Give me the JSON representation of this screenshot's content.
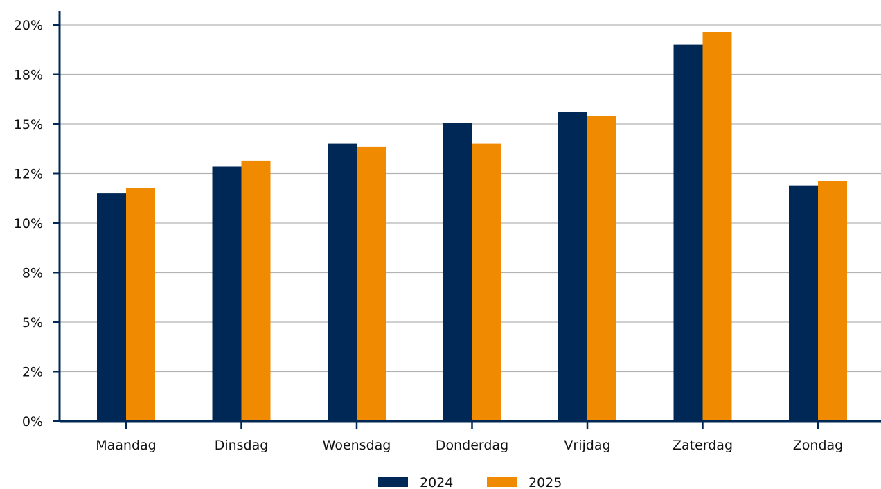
{
  "chart_data": {
    "type": "bar",
    "categories": [
      "Maandag",
      "Dinsdag",
      "Woensdag",
      "Donderdag",
      "Vrijdag",
      "Zaterdag",
      "Zondag"
    ],
    "series": [
      {
        "name": "2024",
        "values": [
          11.5,
          12.85,
          14.0,
          15.05,
          15.6,
          19.0,
          11.9
        ],
        "color": "#002856"
      },
      {
        "name": "2025",
        "values": [
          11.75,
          13.15,
          13.85,
          14.0,
          15.4,
          19.65,
          12.1
        ],
        "color": "#f08a00"
      }
    ],
    "title": "",
    "xlabel": "",
    "ylabel": "",
    "ylim": [
      0,
      20
    ],
    "yticks": [
      0,
      2.5,
      5,
      7.5,
      10,
      12.5,
      15,
      17.5,
      20
    ],
    "ytick_labels": [
      "0%",
      "2%",
      "5%",
      "8%",
      "10%",
      "12%",
      "15%",
      "18%",
      "20%"
    ],
    "grid": true,
    "legend_position": "bottom-center",
    "axis_color": "#002856",
    "grid_color": "#b3b3b3"
  }
}
